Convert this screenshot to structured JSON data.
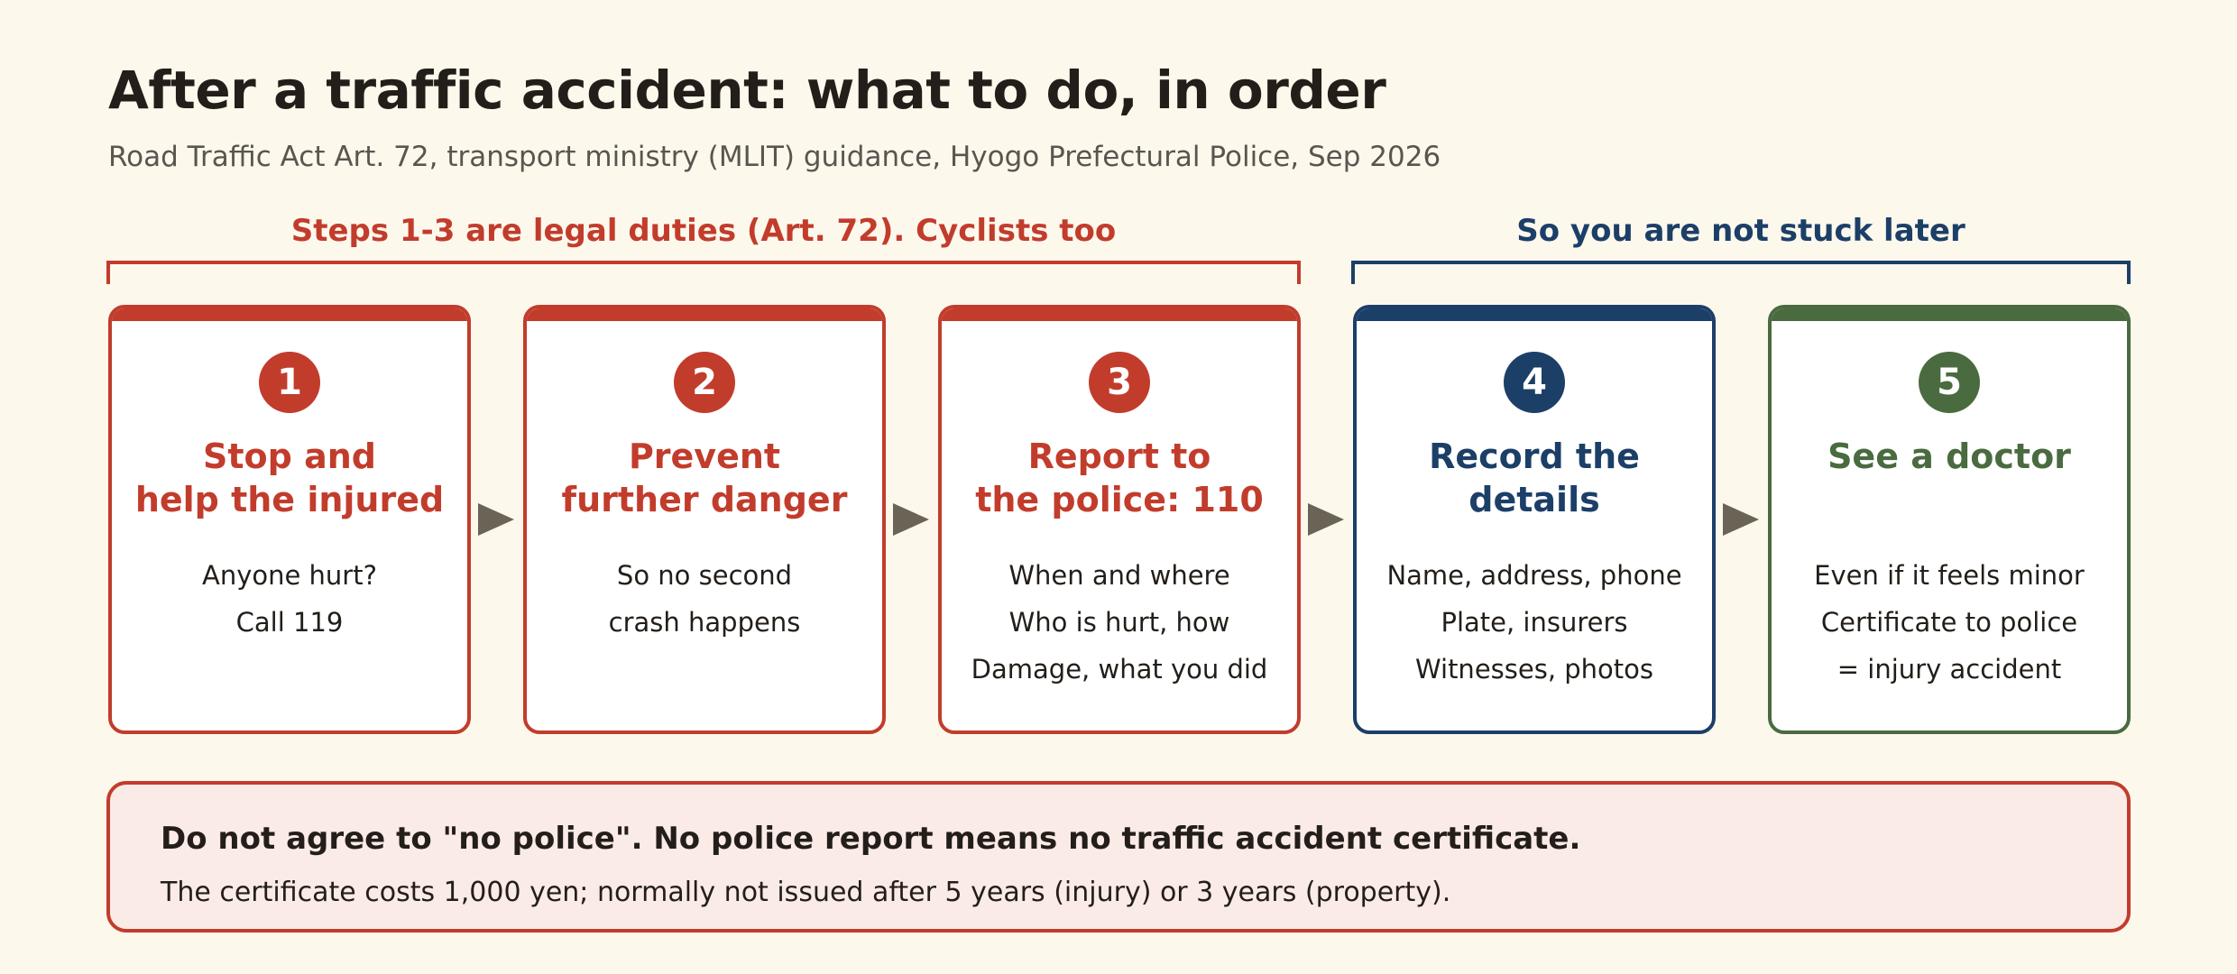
{
  "title": "After a traffic accident: what to do, in order",
  "subtitle": "Road Traffic Act Art. 72, transport ministry (MLIT) guidance, Hyogo Prefectural Police, Sep 2026",
  "groups": {
    "legal": "Steps 1-3 are legal duties (Art. 72). Cyclists too",
    "later": "So you are not stuck later"
  },
  "steps": [
    {
      "number": "1",
      "heading": "Stop and\nhelp the injured",
      "lines": [
        "Anyone hurt?",
        "Call 119"
      ]
    },
    {
      "number": "2",
      "heading": "Prevent\nfurther danger",
      "lines": [
        "So no second",
        "crash happens"
      ]
    },
    {
      "number": "3",
      "heading": "Report to\nthe police: 110",
      "lines": [
        "When and where",
        "Who is hurt, how",
        "Damage, what you did"
      ]
    },
    {
      "number": "4",
      "heading": "Record the\ndetails",
      "lines": [
        "Name, address, phone",
        "Plate, insurers",
        "Witnesses, photos"
      ]
    },
    {
      "number": "5",
      "heading": "See a doctor",
      "lines": [
        "Even if it feels minor",
        "Certificate to police",
        "= injury accident"
      ]
    }
  ],
  "notice": {
    "heading": "Do not agree to \"no police\". No police report means no traffic accident certificate.",
    "body": "The certificate costs 1,000 yen; normally not issued after 5 years (injury) or 3 years (property)."
  },
  "colors": {
    "legal": "#c23c2c",
    "later": "#1c3f68",
    "doctor": "#4a6b3f",
    "background": "#fcf8ec"
  }
}
